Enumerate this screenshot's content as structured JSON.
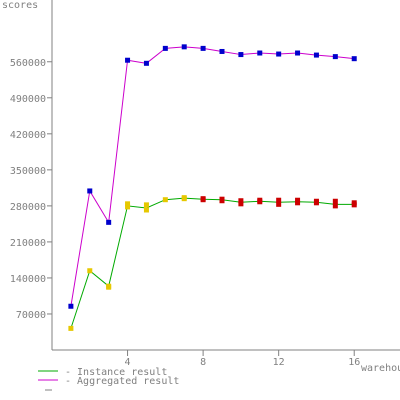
{
  "chart_data": {
    "type": "line",
    "xlabel": "warehouses",
    "ylabel": "scores",
    "xlim": [
      0,
      18
    ],
    "ylim": [
      0,
      680000
    ],
    "x_ticks": [
      4,
      8,
      12,
      16
    ],
    "y_ticks": [
      70000,
      140000,
      210000,
      280000,
      350000,
      420000,
      490000,
      560000
    ],
    "grid": false,
    "series": [
      {
        "name": "- Aggregated result",
        "color": "#cc00cc",
        "marker_color": "#0000cc",
        "x": [
          1,
          2,
          3,
          4,
          5,
          6,
          7,
          8,
          9,
          10,
          11,
          12,
          13,
          14,
          15,
          16
        ],
        "y": [
          85000,
          309000,
          248000,
          563000,
          557000,
          586000,
          589000,
          586000,
          580000,
          574000,
          577000,
          575000,
          577000,
          573000,
          570000,
          566000
        ]
      },
      {
        "name": "- Instance result",
        "color": "#00aa00",
        "x": [
          1,
          2,
          3,
          4,
          5,
          6,
          7,
          8,
          9,
          10,
          11,
          12,
          13,
          14,
          15,
          16
        ],
        "y": [
          42000,
          154000,
          124000,
          280000,
          276000,
          292000,
          295000,
          293000,
          292000,
          287000,
          289000,
          287000,
          288000,
          287000,
          283000,
          283000
        ],
        "points": [
          {
            "x": 1,
            "y": 42000,
            "color": "#e6c800"
          },
          {
            "x": 2,
            "y": 154000,
            "color": "#e6c800"
          },
          {
            "x": 3,
            "y": 124000,
            "color": "#e6c800"
          },
          {
            "x": 3,
            "y": 122000,
            "color": "#e6c800"
          },
          {
            "x": 4,
            "y": 284000,
            "color": "#e6c800"
          },
          {
            "x": 4,
            "y": 278000,
            "color": "#e6c800"
          },
          {
            "x": 5,
            "y": 282000,
            "color": "#e6c800"
          },
          {
            "x": 5,
            "y": 272000,
            "color": "#e6c800"
          },
          {
            "x": 6,
            "y": 292000,
            "color": "#e6c800"
          },
          {
            "x": 7,
            "y": 296000,
            "color": "#e6c800"
          },
          {
            "x": 7,
            "y": 294000,
            "color": "#e6c800"
          },
          {
            "x": 8,
            "y": 294000,
            "color": "#cc0000"
          },
          {
            "x": 8,
            "y": 292000,
            "color": "#cc0000"
          },
          {
            "x": 9,
            "y": 293000,
            "color": "#cc0000"
          },
          {
            "x": 9,
            "y": 290000,
            "color": "#cc0000"
          },
          {
            "x": 10,
            "y": 290000,
            "color": "#cc0000"
          },
          {
            "x": 10,
            "y": 284000,
            "color": "#cc0000"
          },
          {
            "x": 11,
            "y": 291000,
            "color": "#cc0000"
          },
          {
            "x": 11,
            "y": 288000,
            "color": "#cc0000"
          },
          {
            "x": 12,
            "y": 291000,
            "color": "#cc0000"
          },
          {
            "x": 12,
            "y": 283000,
            "color": "#cc0000"
          },
          {
            "x": 13,
            "y": 291000,
            "color": "#cc0000"
          },
          {
            "x": 13,
            "y": 286000,
            "color": "#cc0000"
          },
          {
            "x": 14,
            "y": 289000,
            "color": "#cc0000"
          },
          {
            "x": 14,
            "y": 286000,
            "color": "#cc0000"
          },
          {
            "x": 15,
            "y": 289000,
            "color": "#cc0000"
          },
          {
            "x": 15,
            "y": 280000,
            "color": "#cc0000"
          },
          {
            "x": 16,
            "y": 286000,
            "color": "#cc0000"
          },
          {
            "x": 16,
            "y": 282000,
            "color": "#cc0000"
          }
        ]
      }
    ],
    "legend": {
      "placement": "bottom-left",
      "entries": [
        {
          "label": "- Instance result",
          "color": "#00aa00"
        },
        {
          "label": "- Aggregated result",
          "color": "#cc00cc"
        }
      ]
    },
    "colors": {
      "axis": "#808080",
      "text": "#808080"
    }
  }
}
